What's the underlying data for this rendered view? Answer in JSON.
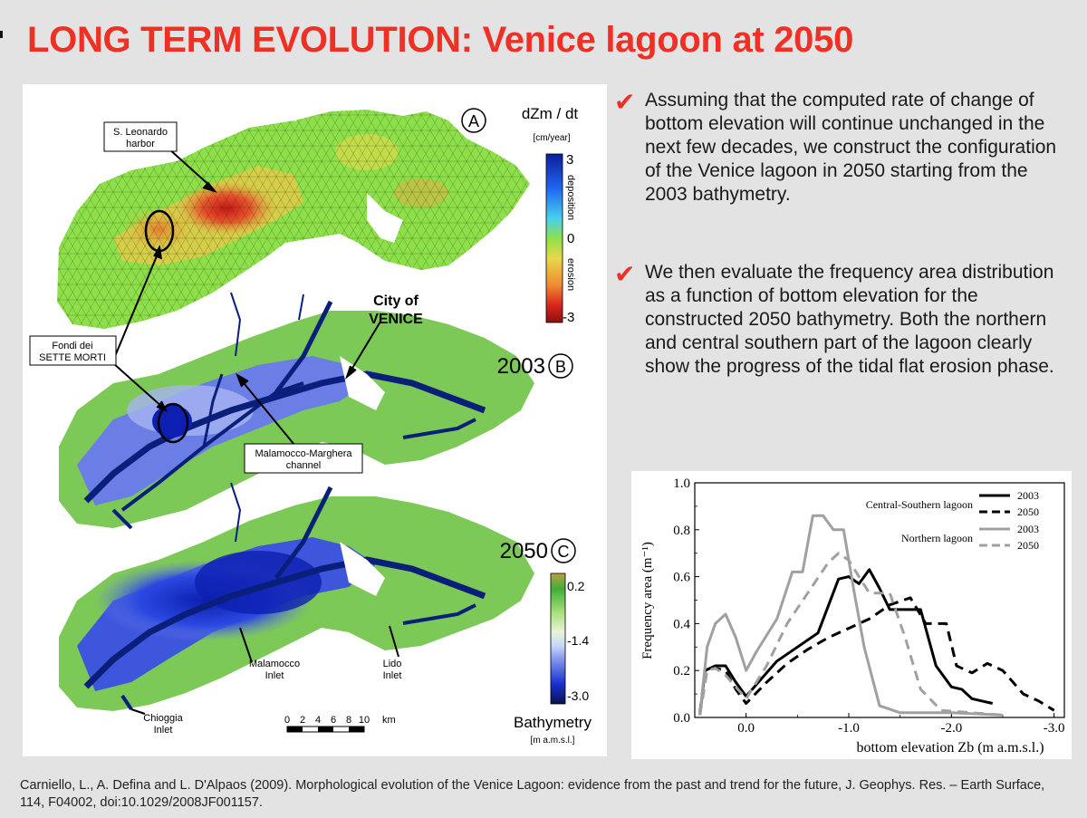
{
  "slide": {
    "title": "LONG TERM EVOLUTION: Venice lagoon at 2050",
    "citation": "Carniello, L., A. Defina and L. D'Alpaos (2009). Morphological evolution of the Venice Lagoon: evidence from the past and trend for the future, J. Geophys. Res. – Earth Surface, 114, F04002, doi:10.1029/2008JF001157."
  },
  "bullets": [
    {
      "icon": "check-icon",
      "text": "Assuming that the computed rate of change of bottom elevation will continue unchanged in the next few decades, we construct the configuration of the Venice lagoon in 2050 starting from the 2003 bathymetry."
    },
    {
      "icon": "check-icon",
      "text": "We then evaluate the frequency area distribution as a function of bottom elevation for the constructed 2050 bathymetry. Both the northern and central southern part of the lagoon clearly show the progress of the tidal flat erosion phase."
    }
  ],
  "map_figure": {
    "panel_a": "A",
    "panel_b": "B",
    "panel_c": "C",
    "year_b": "2003",
    "year_c": "2050",
    "rate_label": "dZm / dt",
    "rate_unit": "[cm/year]",
    "rate_scale": {
      "ticks": [
        "3",
        "0",
        "-3"
      ],
      "deposition": "deposition",
      "erosion": "erosion"
    },
    "bathy_scale": {
      "ticks": [
        "0.2",
        "-1.4",
        "-3.0"
      ],
      "title": "Bathymetry",
      "unit": "[m a.m.s.l.]"
    },
    "labels": {
      "leonardo_1": "S. Leonardo",
      "leonardo_2": "harbor",
      "fondi_1": "Fondi dei",
      "fondi_2": "SETTE MORTI",
      "city_1": "City of",
      "city_2": "VENICE",
      "malamocco_ch_1": "Malamocco-Marghera",
      "malamocco_ch_2": "channel",
      "malamocco_in_1": "Malamocco",
      "malamocco_in_2": "Inlet",
      "lido_1": "Lido",
      "lido_2": "Inlet",
      "chioggia_1": "Chioggia",
      "chioggia_2": "Inlet"
    },
    "scalebar": {
      "ticks": [
        "0",
        "2",
        "4",
        "6",
        "8",
        "10"
      ],
      "unit": "km"
    },
    "colors": {
      "deposition": "#1a2fd0",
      "neutral": "#8ee04a",
      "erosion": "#d8241e",
      "deep": "#0a1f7a",
      "tidal_flat": "#6a7ee6",
      "salt_marsh": "#7dc957"
    }
  },
  "chart_data": {
    "type": "line",
    "xlabel": "bottom elevation Zb (m a.m.s.l.)",
    "ylabel": "Frequency area (m⁻¹)",
    "xlim": [
      0.5,
      -3.1
    ],
    "ylim": [
      0,
      1.0
    ],
    "xticks": [
      "0.0",
      "-1.0",
      "-2.0",
      "-3.0"
    ],
    "yticks": [
      "0.0",
      "0.2",
      "0.4",
      "0.6",
      "0.8",
      "1.0"
    ],
    "legend_position": "top-right",
    "legend_groups": [
      "Central-Southern lagoon",
      "Northern lagoon"
    ],
    "series": [
      {
        "name": "2003",
        "group": "Central-Southern lagoon",
        "color": "#000000",
        "dash": "solid",
        "points": [
          [
            0.45,
            0.01
          ],
          [
            0.4,
            0.2
          ],
          [
            0.3,
            0.22
          ],
          [
            0.2,
            0.22
          ],
          [
            0.1,
            0.15
          ],
          [
            0.0,
            0.09
          ],
          [
            -0.1,
            0.14
          ],
          [
            -0.3,
            0.24
          ],
          [
            -0.5,
            0.3
          ],
          [
            -0.7,
            0.36
          ],
          [
            -0.9,
            0.59
          ],
          [
            -1.0,
            0.6
          ],
          [
            -1.1,
            0.57
          ],
          [
            -1.2,
            0.63
          ],
          [
            -1.3,
            0.55
          ],
          [
            -1.4,
            0.46
          ],
          [
            -1.55,
            0.46
          ],
          [
            -1.7,
            0.46
          ],
          [
            -1.85,
            0.22
          ],
          [
            -2.0,
            0.13
          ],
          [
            -2.1,
            0.12
          ],
          [
            -2.2,
            0.08
          ],
          [
            -2.3,
            0.07
          ],
          [
            -2.4,
            0.06
          ]
        ]
      },
      {
        "name": "2050",
        "group": "Central-Southern lagoon",
        "color": "#000000",
        "dash": "dashed",
        "points": [
          [
            0.45,
            0.02
          ],
          [
            0.4,
            0.2
          ],
          [
            0.3,
            0.21
          ],
          [
            0.2,
            0.2
          ],
          [
            0.1,
            0.12
          ],
          [
            0.0,
            0.06
          ],
          [
            -0.2,
            0.15
          ],
          [
            -0.4,
            0.23
          ],
          [
            -0.6,
            0.29
          ],
          [
            -0.8,
            0.34
          ],
          [
            -1.0,
            0.38
          ],
          [
            -1.2,
            0.42
          ],
          [
            -1.4,
            0.48
          ],
          [
            -1.6,
            0.51
          ],
          [
            -1.75,
            0.4
          ],
          [
            -1.95,
            0.4
          ],
          [
            -2.05,
            0.22
          ],
          [
            -2.2,
            0.19
          ],
          [
            -2.35,
            0.23
          ],
          [
            -2.5,
            0.2
          ],
          [
            -2.7,
            0.1
          ],
          [
            -2.85,
            0.07
          ],
          [
            -3.0,
            0.03
          ]
        ]
      },
      {
        "name": "2003",
        "group": "Northern lagoon",
        "color": "#a0a0a0",
        "dash": "solid",
        "points": [
          [
            0.45,
            0.01
          ],
          [
            0.38,
            0.3
          ],
          [
            0.3,
            0.4
          ],
          [
            0.2,
            0.44
          ],
          [
            0.1,
            0.34
          ],
          [
            0.0,
            0.2
          ],
          [
            -0.1,
            0.28
          ],
          [
            -0.3,
            0.42
          ],
          [
            -0.45,
            0.62
          ],
          [
            -0.55,
            0.62
          ],
          [
            -0.65,
            0.86
          ],
          [
            -0.75,
            0.86
          ],
          [
            -0.85,
            0.8
          ],
          [
            -0.95,
            0.8
          ],
          [
            -1.05,
            0.54
          ],
          [
            -1.15,
            0.3
          ],
          [
            -1.3,
            0.05
          ],
          [
            -1.5,
            0.02
          ],
          [
            -2.0,
            0.02
          ],
          [
            -2.5,
            0.01
          ]
        ]
      },
      {
        "name": "2050",
        "group": "Northern lagoon",
        "color": "#a0a0a0",
        "dash": "dashed",
        "points": [
          [
            0.45,
            0.01
          ],
          [
            0.38,
            0.2
          ],
          [
            0.3,
            0.21
          ],
          [
            0.2,
            0.18
          ],
          [
            0.0,
            0.08
          ],
          [
            -0.2,
            0.22
          ],
          [
            -0.4,
            0.4
          ],
          [
            -0.6,
            0.53
          ],
          [
            -0.8,
            0.66
          ],
          [
            -0.9,
            0.7
          ],
          [
            -1.0,
            0.67
          ],
          [
            -1.1,
            0.6
          ],
          [
            -1.2,
            0.53
          ],
          [
            -1.4,
            0.53
          ],
          [
            -1.55,
            0.34
          ],
          [
            -1.7,
            0.12
          ],
          [
            -1.9,
            0.03
          ],
          [
            -2.2,
            0.02
          ],
          [
            -2.5,
            0.01
          ]
        ]
      }
    ]
  }
}
